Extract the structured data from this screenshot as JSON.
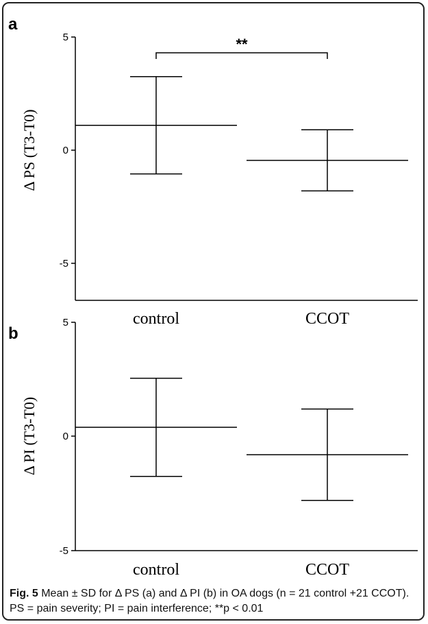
{
  "chart_data": [
    {
      "type": "errorbar",
      "panel": "a",
      "categories": [
        "control",
        "CCOT"
      ],
      "mean": [
        1.1,
        -0.45
      ],
      "sd": [
        2.15,
        1.35
      ],
      "ylabel": "Δ PS (T3-T0)",
      "ylim": [
        -5,
        5
      ],
      "yticks": [
        "5",
        "0",
        "-5"
      ],
      "significance": {
        "from": "control",
        "to": "CCOT",
        "label": "**"
      }
    },
    {
      "type": "errorbar",
      "panel": "b",
      "categories": [
        "control",
        "CCOT"
      ],
      "mean": [
        0.4,
        -0.8
      ],
      "sd": [
        2.15,
        2.0
      ],
      "ylabel": "Δ PI (T3-T0)",
      "ylim": [
        -5,
        5
      ],
      "yticks": [
        "5",
        "0",
        "-5"
      ]
    }
  ],
  "caption": {
    "label": "Fig. 5",
    "text": " Mean ± SD for Δ PS (a) and Δ PI (b) in OA dogs (n = 21 control +21 CCOT). PS = pain severity; PI = pain interference; **p < 0.01"
  }
}
